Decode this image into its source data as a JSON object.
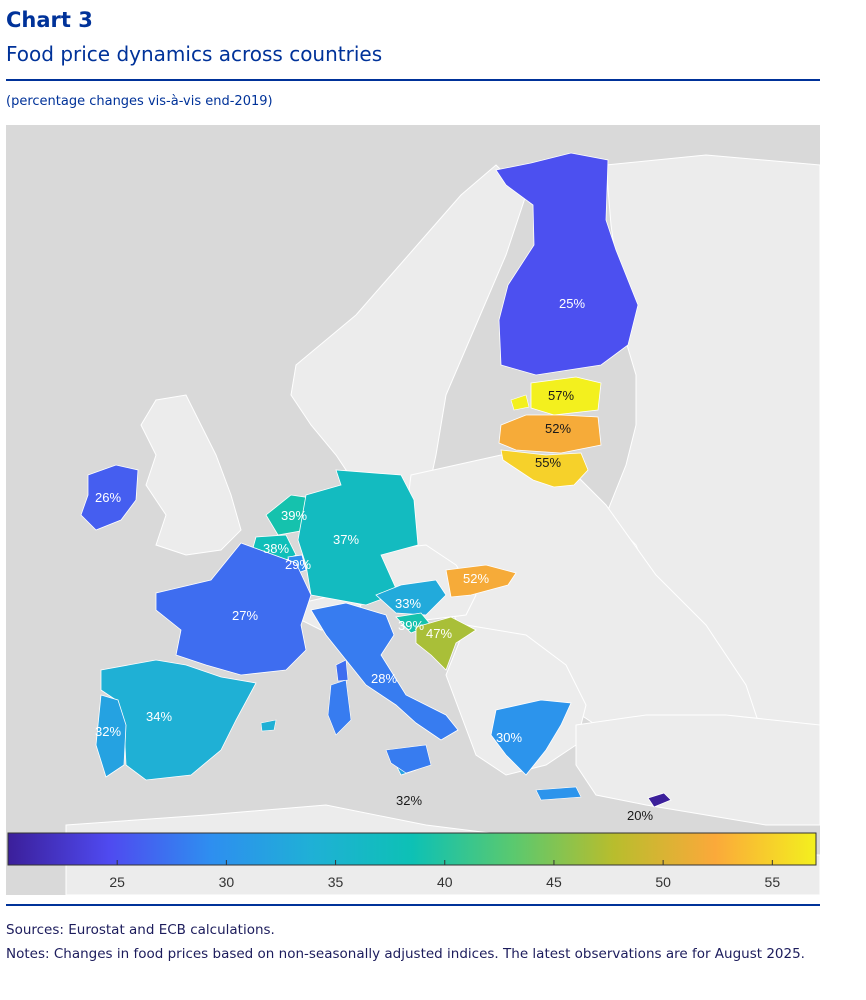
{
  "header": {
    "chart_number": "Chart 3",
    "title": "Food price dynamics across countries",
    "subtitle": "(percentage changes vis-à-vis end-2019)"
  },
  "map": {
    "colors": {
      "sea": "#d9d9d9",
      "land": "#ececec",
      "border": "#ffffff"
    },
    "regions": [
      {
        "name": "Finland",
        "value": 25,
        "label": "25%"
      },
      {
        "name": "Estonia",
        "value": 57,
        "label": "57%"
      },
      {
        "name": "Latvia",
        "value": 52,
        "label": "52%"
      },
      {
        "name": "Lithuania",
        "value": 55,
        "label": "55%"
      },
      {
        "name": "Ireland",
        "value": 26,
        "label": "26%"
      },
      {
        "name": "Netherlands",
        "value": 39,
        "label": "39%"
      },
      {
        "name": "Belgium",
        "value": 38,
        "label": "38%"
      },
      {
        "name": "Luxembourg",
        "value": 29,
        "label": "29%"
      },
      {
        "name": "Germany",
        "value": 37,
        "label": "37%"
      },
      {
        "name": "France",
        "value": 27,
        "label": "27%"
      },
      {
        "name": "Slovakia",
        "value": 52,
        "label": "52%"
      },
      {
        "name": "Austria",
        "value": 33,
        "label": "33%"
      },
      {
        "name": "Slovenia",
        "value": 39,
        "label": "39%"
      },
      {
        "name": "Croatia",
        "value": 47,
        "label": "47%"
      },
      {
        "name": "Italy",
        "value": 28,
        "label": "28%"
      },
      {
        "name": "Spain",
        "value": 34,
        "label": "34%"
      },
      {
        "name": "Portugal",
        "value": 32,
        "label": "32%"
      },
      {
        "name": "Greece",
        "value": 30,
        "label": "30%"
      },
      {
        "name": "Malta",
        "value": 32,
        "label": "32%"
      },
      {
        "name": "Cyprus",
        "value": 20,
        "label": "20%"
      }
    ]
  },
  "colorbar": {
    "range": [
      20,
      57
    ],
    "ticks": [
      "25",
      "30",
      "35",
      "40",
      "45",
      "50",
      "55"
    ],
    "stops": [
      "#3b1f9a",
      "#4f4af0",
      "#2e8ef0",
      "#1fb0d6",
      "#0dc1b5",
      "#5ac96f",
      "#b8bd2d",
      "#fba93a",
      "#f3f01e"
    ]
  },
  "footer": {
    "sources": "Sources: Eurostat and ECB calculations.",
    "notes": "Notes: Changes in food prices based on non-seasonally adjusted indices. The latest observations are for August 2025."
  }
}
